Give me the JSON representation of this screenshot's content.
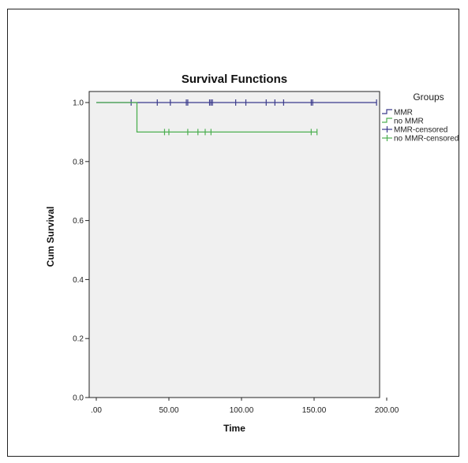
{
  "colors": {
    "plot_background": "#f0f0f0",
    "mmr": "#3a3a8c",
    "no_mmr": "#4caf50",
    "axis": "#222222"
  },
  "chart_data": {
    "type": "line",
    "step": true,
    "title": "Survival Functions",
    "xlabel": "Time",
    "ylabel": "Cum Survival",
    "xlim": [
      0,
      200
    ],
    "ylim": [
      0,
      1.0
    ],
    "xticks": [
      0,
      50,
      100,
      150,
      200
    ],
    "xtick_labels": [
      ".00",
      "50.00",
      "100.00",
      "150.00",
      "200.00"
    ],
    "yticks": [
      0,
      0.2,
      0.4,
      0.6,
      0.8,
      1.0
    ],
    "ytick_labels": [
      "0.0",
      "0.2",
      "0.4",
      "0.6",
      "0.8",
      "1.0"
    ],
    "grid": false,
    "legend": {
      "title": "Groups",
      "position": "right",
      "entries": [
        "MMR",
        "no MMR",
        "MMR-censored",
        "no MMR-censored"
      ]
    },
    "series": [
      {
        "name": "MMR",
        "color": "#3a3a8c",
        "x": [
          0,
          193
        ],
        "y": [
          1.0,
          1.0
        ],
        "censored": [
          24,
          42,
          51,
          62,
          63,
          78,
          79,
          80,
          96,
          103,
          117,
          123,
          129,
          148,
          149,
          193
        ]
      },
      {
        "name": "no MMR",
        "color": "#4caf50",
        "x": [
          0,
          28,
          28,
          152
        ],
        "y": [
          1.0,
          1.0,
          0.9,
          0.9
        ],
        "censored": [
          47,
          50,
          63,
          70,
          75,
          79,
          148,
          152
        ]
      }
    ]
  }
}
